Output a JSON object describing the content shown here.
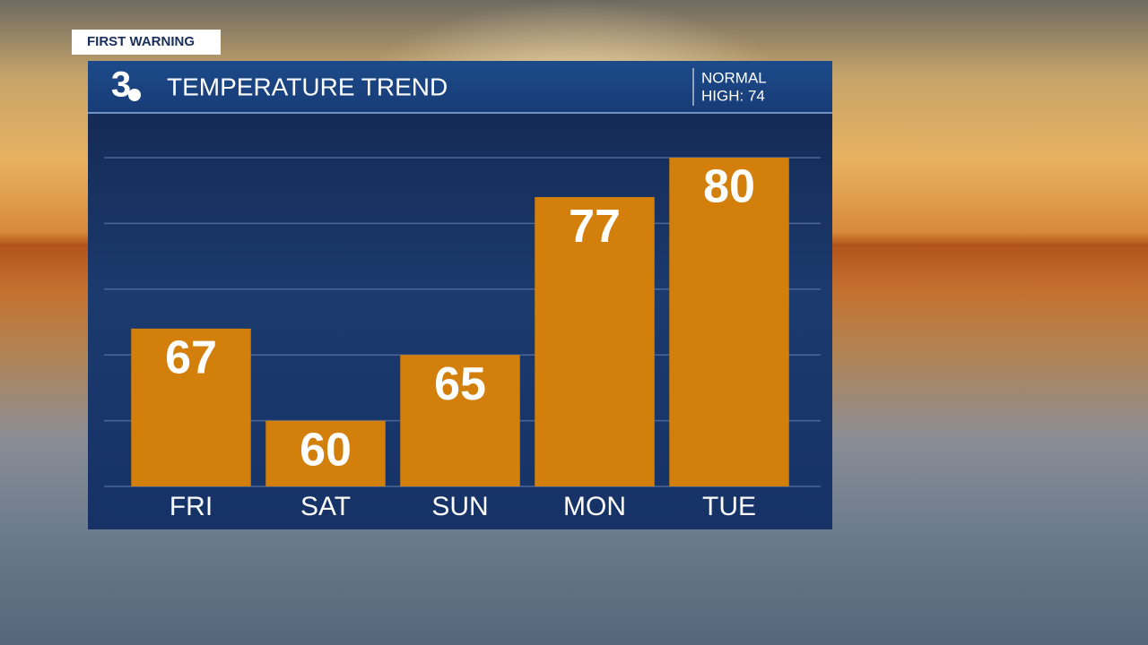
{
  "chart_data": {
    "type": "bar",
    "badge": "FIRST WARNING",
    "logo": "3",
    "title": "TEMPERATURE TREND",
    "annotation": [
      "NORMAL",
      "HIGH: 74"
    ],
    "categories": [
      "FRI",
      "SAT",
      "SUN",
      "MON",
      "TUE"
    ],
    "values": [
      67,
      60,
      65,
      77,
      80
    ],
    "color": "#d27f0c",
    "ylim": [
      55,
      80
    ],
    "yticks": [
      55,
      60,
      65,
      70,
      75,
      80
    ],
    "grid": true
  }
}
